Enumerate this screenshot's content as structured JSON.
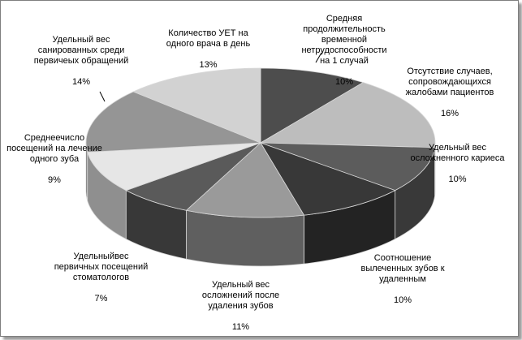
{
  "chart_data": {
    "type": "pie",
    "style": "3d-exploded-none",
    "legend": "none",
    "slices": [
      {
        "label": "Средняя продолжительность временной нетрудоспособности на 1 случай",
        "lines": [
          "Средняя",
          "продолжительность",
          "временной",
          "нетрудоспособности",
          "на 1 случай"
        ],
        "value": 10,
        "value_label": "10%",
        "color": "#4d4d4d"
      },
      {
        "label": "Отсутствие случаев, сопровождающихся жалобами пациентов",
        "lines": [
          "Отсутствие случаев,",
          "сопровождающихся",
          "жалобами пациентов"
        ],
        "value": 16,
        "value_label": "16%",
        "color": "#bdbdbd"
      },
      {
        "label": "Удельный вес осложненного кариеса",
        "lines": [
          "Удельный вес",
          "осложненного кариеса"
        ],
        "value": 10,
        "value_label": "10%",
        "color": "#5c5c5c"
      },
      {
        "label": "Соотношение вылеченных зубов к удаленным",
        "lines": [
          "Соотношение",
          "вылеченных зубов к",
          "удаленным"
        ],
        "value": 10,
        "value_label": "10%",
        "color": "#383838"
      },
      {
        "label": "Удельный вес осложнений после удаления зубов",
        "lines": [
          "Удельный вес",
          "осложнений после",
          "удаления зубов"
        ],
        "value": 11,
        "value_label": "11%",
        "color": "#9a9a9a"
      },
      {
        "label": "Удельныйвес первичных посещений стоматологов",
        "lines": [
          "Удельныйвес",
          "первичных посещений",
          "стоматологов"
        ],
        "value": 7,
        "value_label": "7%",
        "color": "#5a5a5a"
      },
      {
        "label": "Среднеечисло посещений на лечение одного зуба",
        "lines": [
          "Среднеечисло",
          "посещений на лечение",
          "одного зуба"
        ],
        "value": 9,
        "value_label": "9%",
        "color": "#e6e6e6"
      },
      {
        "label": "Удельный вес санированных среди первичеых обращений",
        "lines": [
          "Удельный вес",
          "санированных среди",
          "первичеых обращений"
        ],
        "value": 14,
        "value_label": "14%",
        "color": "#959595"
      },
      {
        "label": "Количество УЕТ на одного врача в день",
        "lines": [
          "Количество УЕТ на",
          "одного врача в день"
        ],
        "value": 13,
        "value_label": "13%",
        "color": "#d2d2d2"
      }
    ]
  }
}
